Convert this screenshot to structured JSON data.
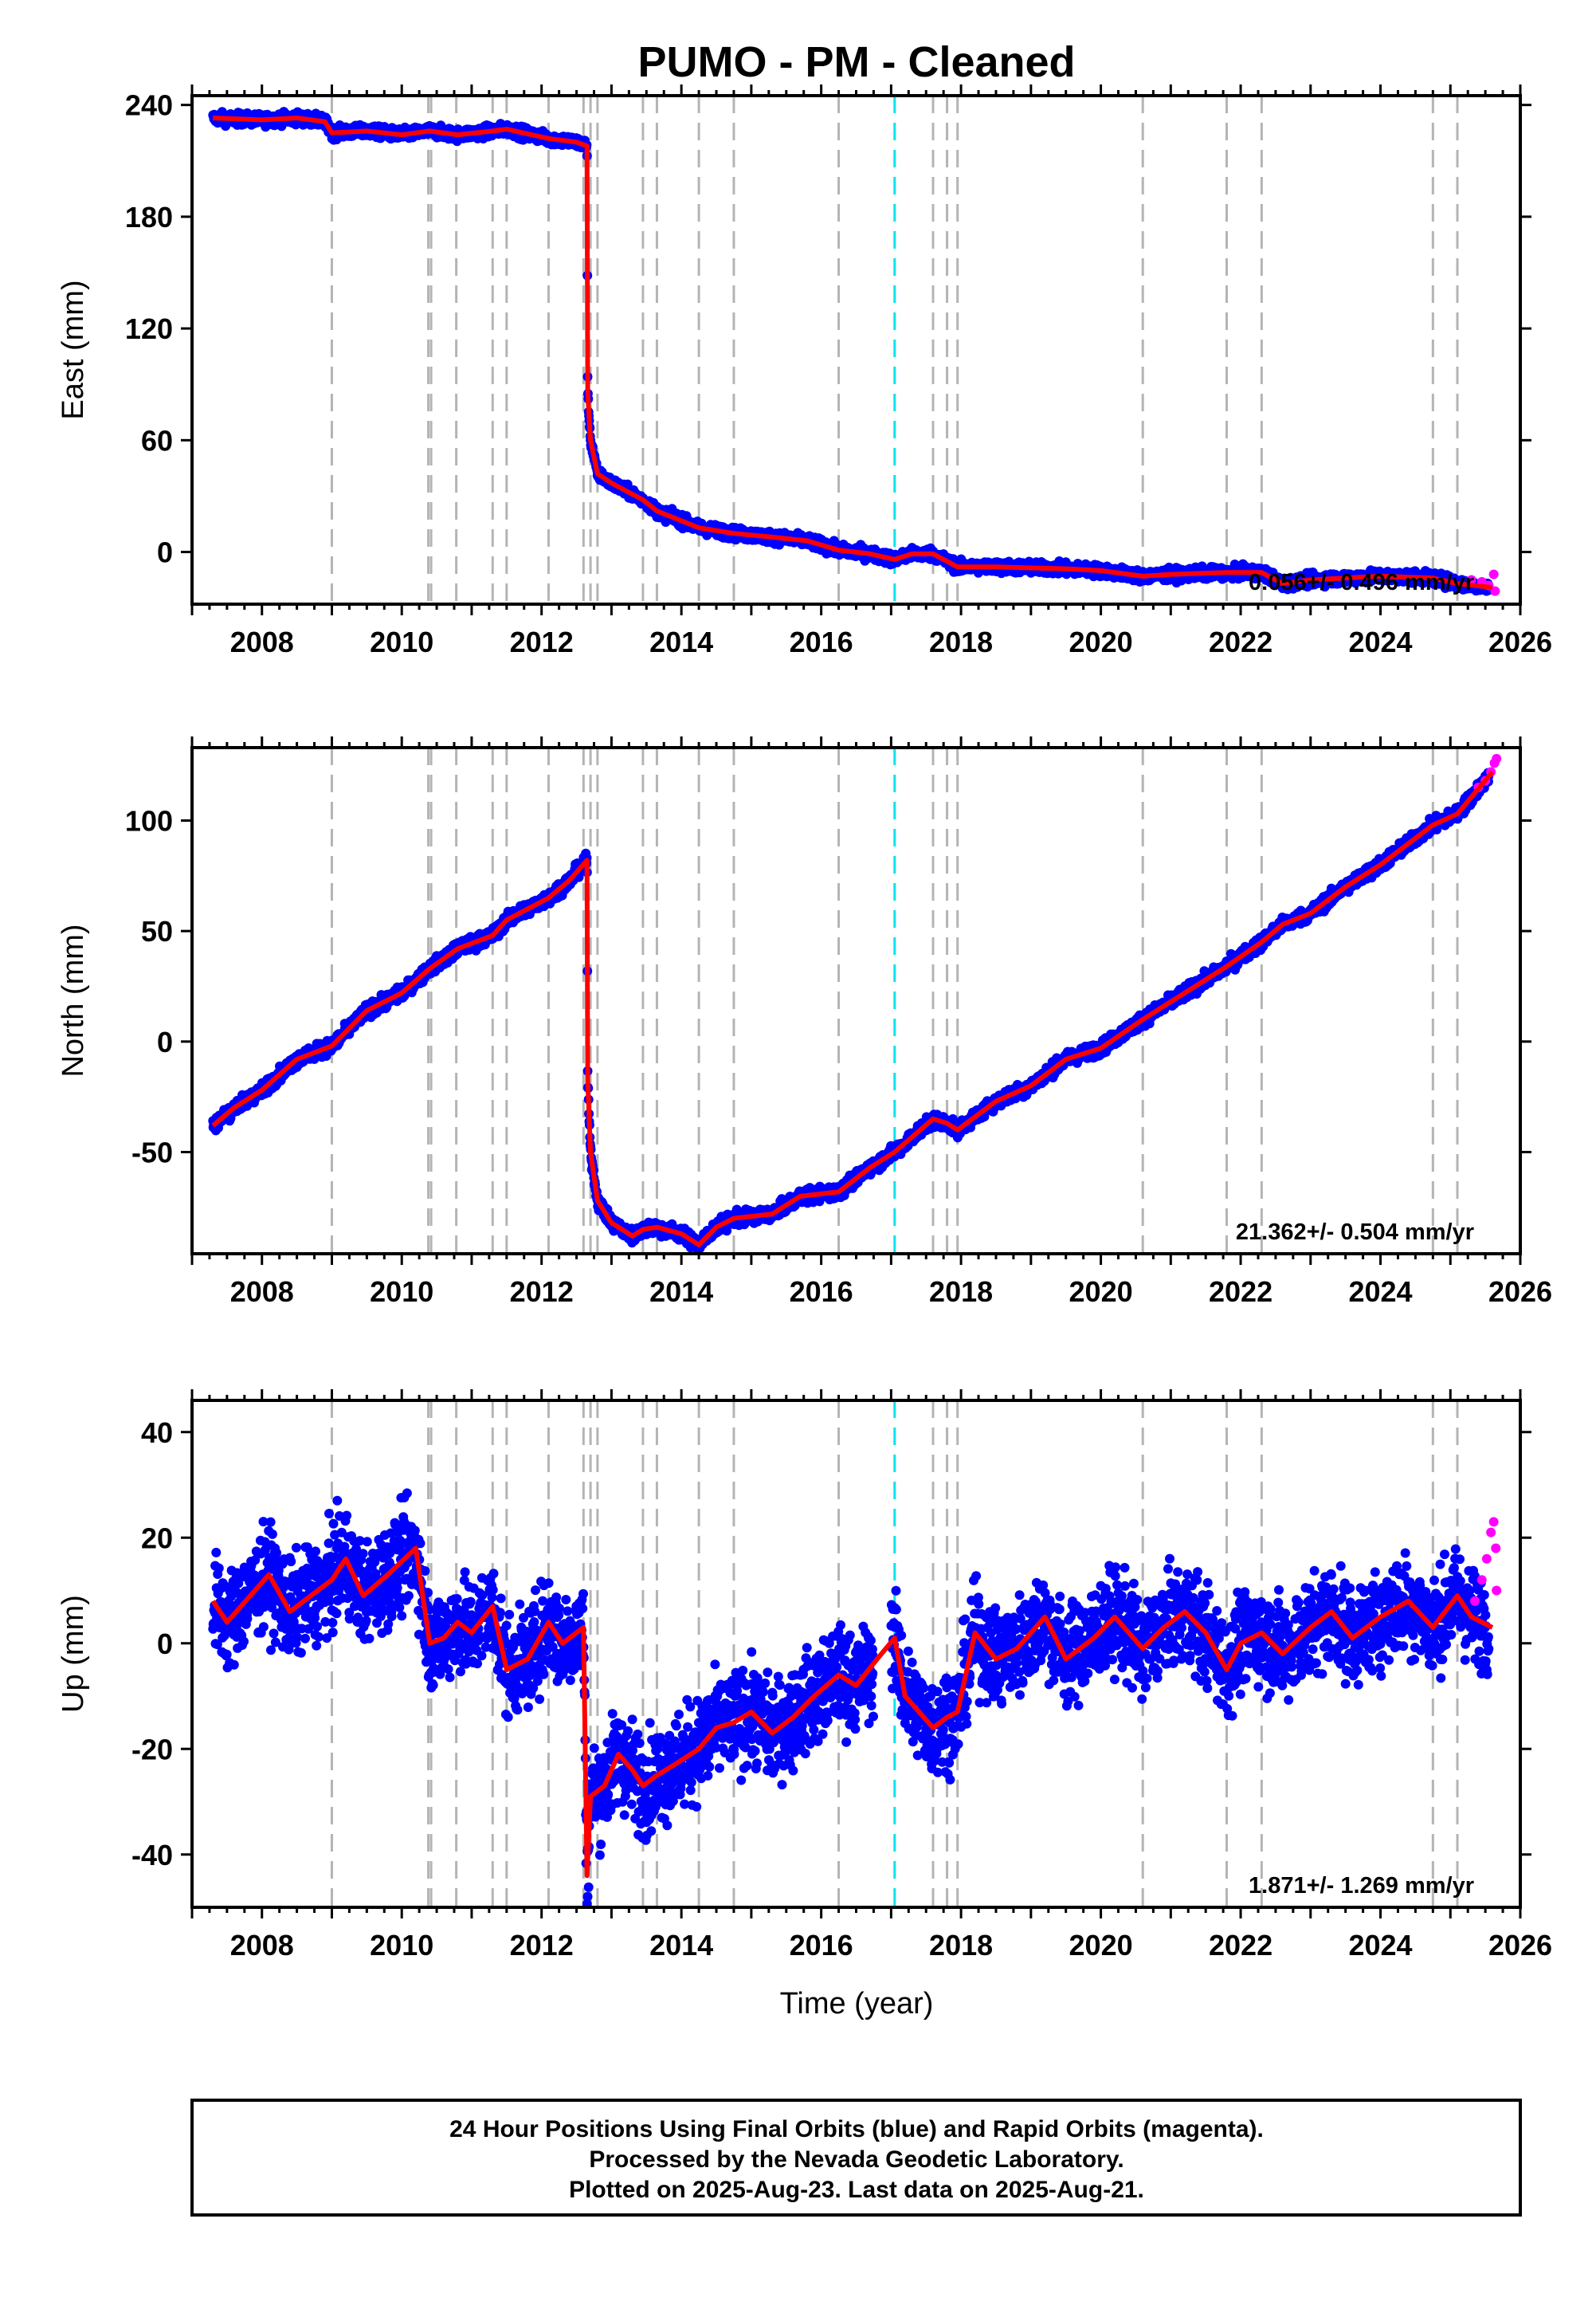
{
  "title": "PUMO  - PM - Cleaned",
  "xlabel": "Time (year)",
  "footer": {
    "line1": "24 Hour Positions Using Final Orbits (blue) and Rapid Orbits (magenta).",
    "line2": "Processed by the Nevada Geodetic Laboratory.",
    "line3": "Plotted on 2025-Aug-23. Last data on 2025-Aug-21."
  },
  "colors": {
    "final_orbits": "#0000ff",
    "rapid_orbits": "#ff00ff",
    "model": "#ff0000",
    "event_lines": "#b4b4b4",
    "highlight_line": "#00e5ee"
  },
  "chart_data": [
    {
      "type": "scatter",
      "panel": "east",
      "ylabel": "East (mm)",
      "rate_text": "0.056+/- 0.496 mm/yr",
      "xlim": [
        2007.0,
        2026.0
      ],
      "ylim": [
        -28,
        245
      ],
      "x_ticks": [
        2008,
        2010,
        2012,
        2014,
        2016,
        2018,
        2020,
        2022,
        2024,
        2026
      ],
      "y_ticks": [
        0,
        60,
        120,
        180,
        240
      ],
      "event_lines": [
        2009.0,
        2010.38,
        2010.42,
        2010.78,
        2011.3,
        2011.5,
        2012.1,
        2012.6,
        2012.7,
        2012.8,
        2013.45,
        2013.65,
        2014.25,
        2014.75,
        2016.25,
        2017.6,
        2017.8,
        2017.95,
        2020.6,
        2021.8,
        2022.3,
        2024.75,
        2025.1
      ],
      "highlight_line": 2017.05,
      "model": [
        [
          2007.3,
          233
        ],
        [
          2008.0,
          232
        ],
        [
          2008.5,
          233
        ],
        [
          2008.9,
          231
        ],
        [
          2009.0,
          225
        ],
        [
          2009.5,
          226
        ],
        [
          2010.0,
          224
        ],
        [
          2010.4,
          226
        ],
        [
          2010.8,
          224
        ],
        [
          2011.3,
          226
        ],
        [
          2011.5,
          227
        ],
        [
          2012.1,
          222
        ],
        [
          2012.5,
          220
        ],
        [
          2012.65,
          218
        ],
        [
          2012.66,
          85
        ],
        [
          2012.7,
          60
        ],
        [
          2012.8,
          42
        ],
        [
          2013.0,
          37
        ],
        [
          2013.45,
          28
        ],
        [
          2013.65,
          22
        ],
        [
          2014.25,
          13
        ],
        [
          2014.75,
          10
        ],
        [
          2015.3,
          8
        ],
        [
          2015.8,
          6
        ],
        [
          2016.25,
          1
        ],
        [
          2016.7,
          -1
        ],
        [
          2017.05,
          -4
        ],
        [
          2017.3,
          -1
        ],
        [
          2017.6,
          -1
        ],
        [
          2017.95,
          -8
        ],
        [
          2018.5,
          -8
        ],
        [
          2019.5,
          -9
        ],
        [
          2020.0,
          -10
        ],
        [
          2020.6,
          -13
        ],
        [
          2021.0,
          -12
        ],
        [
          2021.8,
          -11
        ],
        [
          2022.3,
          -11
        ],
        [
          2022.6,
          -17
        ],
        [
          2023.0,
          -15
        ],
        [
          2024.0,
          -13
        ],
        [
          2024.75,
          -14
        ],
        [
          2025.1,
          -17
        ],
        [
          2025.6,
          -19
        ]
      ],
      "rapid": [
        [
          2025.3,
          -15
        ],
        [
          2025.45,
          -16
        ],
        [
          2025.55,
          -18
        ],
        [
          2025.62,
          -12
        ],
        [
          2025.64,
          -21
        ]
      ]
    },
    {
      "type": "scatter",
      "panel": "north",
      "ylabel": "North (mm)",
      "rate_text": "21.362+/- 0.504 mm/yr",
      "xlim": [
        2007.0,
        2026.0
      ],
      "ylim": [
        -96,
        133
      ],
      "x_ticks": [
        2008,
        2010,
        2012,
        2014,
        2016,
        2018,
        2020,
        2022,
        2024,
        2026
      ],
      "y_ticks": [
        -50,
        0,
        50,
        100
      ],
      "event_lines": [
        2009.0,
        2010.38,
        2010.42,
        2010.78,
        2011.3,
        2011.5,
        2012.1,
        2012.6,
        2012.7,
        2012.8,
        2013.45,
        2013.65,
        2014.25,
        2014.75,
        2016.25,
        2017.6,
        2017.8,
        2017.95,
        2020.6,
        2021.8,
        2022.3,
        2024.75,
        2025.1
      ],
      "highlight_line": 2017.05,
      "model": [
        [
          2007.3,
          -38
        ],
        [
          2007.6,
          -30
        ],
        [
          2008.0,
          -22
        ],
        [
          2008.5,
          -8
        ],
        [
          2009.0,
          -2
        ],
        [
          2009.5,
          14
        ],
        [
          2010.0,
          22
        ],
        [
          2010.4,
          33
        ],
        [
          2010.8,
          42
        ],
        [
          2011.3,
          48
        ],
        [
          2011.5,
          55
        ],
        [
          2012.1,
          65
        ],
        [
          2012.4,
          73
        ],
        [
          2012.65,
          82
        ],
        [
          2012.66,
          -18
        ],
        [
          2012.7,
          -50
        ],
        [
          2012.8,
          -72
        ],
        [
          2013.0,
          -82
        ],
        [
          2013.3,
          -88
        ],
        [
          2013.45,
          -85
        ],
        [
          2013.65,
          -84
        ],
        [
          2014.0,
          -87
        ],
        [
          2014.25,
          -92
        ],
        [
          2014.5,
          -84
        ],
        [
          2014.75,
          -80
        ],
        [
          2015.3,
          -78
        ],
        [
          2015.7,
          -70
        ],
        [
          2016.25,
          -68
        ],
        [
          2016.7,
          -57
        ],
        [
          2017.05,
          -50
        ],
        [
          2017.6,
          -35
        ],
        [
          2017.8,
          -37
        ],
        [
          2017.95,
          -40
        ],
        [
          2018.5,
          -27
        ],
        [
          2019.0,
          -20
        ],
        [
          2019.5,
          -8
        ],
        [
          2020.0,
          -3
        ],
        [
          2020.6,
          10
        ],
        [
          2021.0,
          18
        ],
        [
          2021.5,
          28
        ],
        [
          2021.8,
          34
        ],
        [
          2022.3,
          45
        ],
        [
          2022.6,
          53
        ],
        [
          2023.0,
          58
        ],
        [
          2023.5,
          70
        ],
        [
          2024.0,
          80
        ],
        [
          2024.5,
          92
        ],
        [
          2024.75,
          98
        ],
        [
          2025.1,
          103
        ],
        [
          2025.6,
          122
        ]
      ],
      "rapid": [
        [
          2025.4,
          115
        ],
        [
          2025.5,
          118
        ],
        [
          2025.58,
          122
        ],
        [
          2025.63,
          126
        ],
        [
          2025.66,
          128
        ]
      ]
    },
    {
      "type": "scatter",
      "panel": "up",
      "ylabel": "Up (mm)",
      "rate_text": "1.871+/- 1.269 mm/yr",
      "xlim": [
        2007.0,
        2026.0
      ],
      "ylim": [
        -50,
        46
      ],
      "x_ticks": [
        2008,
        2010,
        2012,
        2014,
        2016,
        2018,
        2020,
        2022,
        2024,
        2026
      ],
      "y_ticks": [
        -40,
        -20,
        0,
        20,
        40
      ],
      "event_lines": [
        2009.0,
        2010.38,
        2010.42,
        2010.78,
        2011.3,
        2011.5,
        2012.1,
        2012.6,
        2012.7,
        2012.8,
        2013.45,
        2013.65,
        2014.25,
        2014.75,
        2016.25,
        2017.6,
        2017.8,
        2017.95,
        2020.6,
        2021.8,
        2022.3,
        2024.75,
        2025.1
      ],
      "highlight_line": 2017.05,
      "model": [
        [
          2007.3,
          8
        ],
        [
          2007.5,
          4
        ],
        [
          2007.9,
          10
        ],
        [
          2008.1,
          13
        ],
        [
          2008.4,
          6
        ],
        [
          2008.8,
          10
        ],
        [
          2009.0,
          12
        ],
        [
          2009.2,
          16
        ],
        [
          2009.45,
          9
        ],
        [
          2009.8,
          13
        ],
        [
          2010.2,
          18
        ],
        [
          2010.4,
          0
        ],
        [
          2010.6,
          1
        ],
        [
          2010.8,
          4
        ],
        [
          2011.0,
          2
        ],
        [
          2011.3,
          7
        ],
        [
          2011.5,
          -5
        ],
        [
          2011.8,
          -3
        ],
        [
          2012.1,
          4
        ],
        [
          2012.3,
          0
        ],
        [
          2012.6,
          3
        ],
        [
          2012.65,
          -44
        ],
        [
          2012.7,
          -29
        ],
        [
          2012.9,
          -27
        ],
        [
          2013.1,
          -21
        ],
        [
          2013.3,
          -24
        ],
        [
          2013.45,
          -27
        ],
        [
          2013.65,
          -25
        ],
        [
          2013.9,
          -23
        ],
        [
          2014.25,
          -20
        ],
        [
          2014.5,
          -16
        ],
        [
          2014.75,
          -15
        ],
        [
          2015.0,
          -13
        ],
        [
          2015.3,
          -17
        ],
        [
          2015.6,
          -14
        ],
        [
          2015.9,
          -10
        ],
        [
          2016.25,
          -6
        ],
        [
          2016.5,
          -8
        ],
        [
          2016.8,
          -3
        ],
        [
          2017.05,
          1
        ],
        [
          2017.2,
          -10
        ],
        [
          2017.6,
          -16
        ],
        [
          2017.8,
          -14
        ],
        [
          2017.95,
          -13
        ],
        [
          2018.2,
          2
        ],
        [
          2018.5,
          -3
        ],
        [
          2018.8,
          -1
        ],
        [
          2019.2,
          5
        ],
        [
          2019.5,
          -3
        ],
        [
          2019.9,
          1
        ],
        [
          2020.2,
          5
        ],
        [
          2020.6,
          -1
        ],
        [
          2020.9,
          3
        ],
        [
          2021.2,
          6
        ],
        [
          2021.5,
          2
        ],
        [
          2021.8,
          -5
        ],
        [
          2022.0,
          0
        ],
        [
          2022.3,
          2
        ],
        [
          2022.6,
          -2
        ],
        [
          2023.0,
          3
        ],
        [
          2023.3,
          6
        ],
        [
          2023.6,
          1
        ],
        [
          2024.0,
          5
        ],
        [
          2024.4,
          8
        ],
        [
          2024.75,
          3
        ],
        [
          2025.1,
          9
        ],
        [
          2025.3,
          5
        ],
        [
          2025.6,
          3
        ]
      ],
      "rapid": [
        [
          2025.35,
          8
        ],
        [
          2025.45,
          12
        ],
        [
          2025.52,
          16
        ],
        [
          2025.58,
          21
        ],
        [
          2025.62,
          23
        ],
        [
          2025.65,
          18
        ],
        [
          2025.66,
          10
        ]
      ]
    }
  ]
}
